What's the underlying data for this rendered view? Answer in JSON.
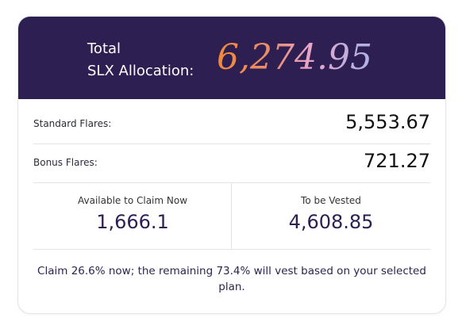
{
  "header": {
    "title_lines": [
      "Total",
      "SLX Allocation:"
    ],
    "amount": "6,274.95"
  },
  "rows": [
    {
      "label": "Standard Flares:",
      "value": "5,553.67"
    },
    {
      "label": "Bonus Flares:",
      "value": "721.27"
    }
  ],
  "split": [
    {
      "label": "Available to Claim Now",
      "value": "1,666.1"
    },
    {
      "label": "To be Vested",
      "value": "4,608.85"
    }
  ],
  "note": "Claim 26.6% now; the remaining 73.4% will vest based on your selected plan."
}
